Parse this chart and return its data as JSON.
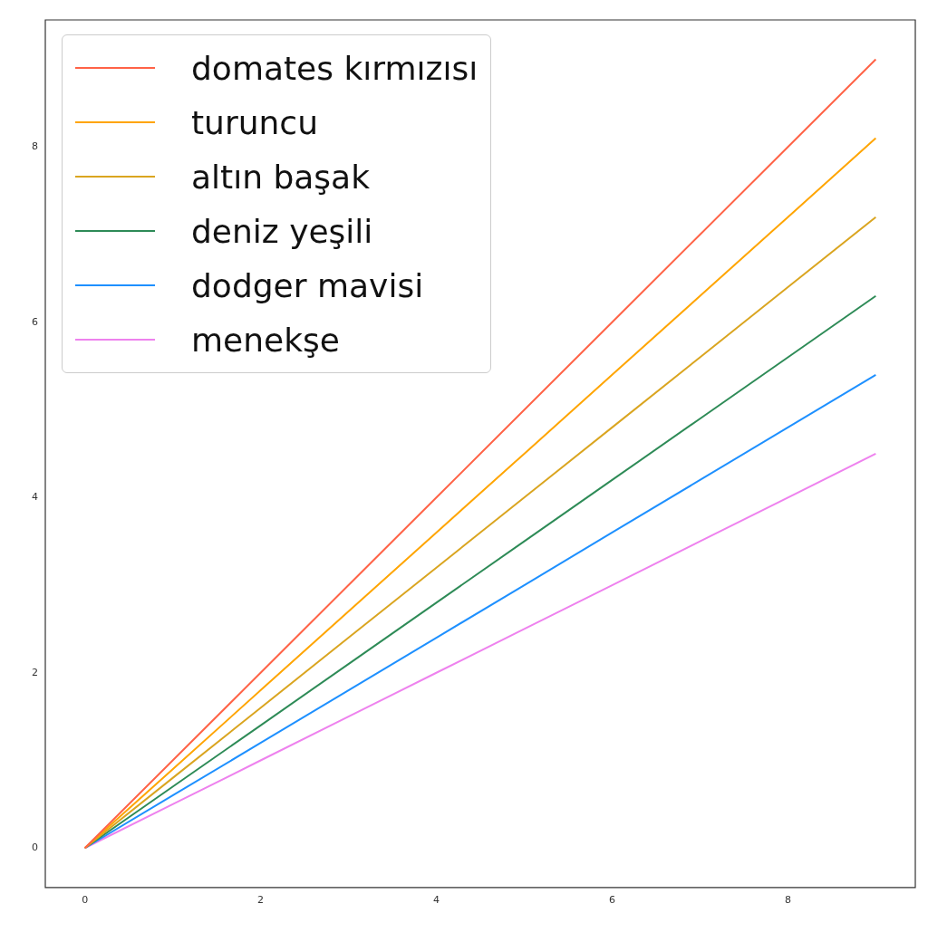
{
  "chart_data": {
    "type": "line",
    "x": [
      0,
      1,
      2,
      3,
      4,
      5,
      6,
      7,
      8,
      9
    ],
    "series": [
      {
        "name": "domates kırmızısı",
        "color": "#ff6347",
        "values": [
          0,
          1,
          2,
          3,
          4,
          5,
          6,
          7,
          8,
          9
        ]
      },
      {
        "name": "turuncu",
        "color": "#ffa500",
        "values": [
          0,
          0.9,
          1.8,
          2.7,
          3.6,
          4.5,
          5.4,
          6.3,
          7.2,
          8.1
        ]
      },
      {
        "name": "altın başak",
        "color": "#daa520",
        "values": [
          0,
          0.8,
          1.6,
          2.4,
          3.2,
          4,
          4.8,
          5.6,
          6.4,
          7.2
        ]
      },
      {
        "name": "deniz yeşili",
        "color": "#2e8b57",
        "values": [
          0,
          0.7,
          1.4,
          2.1,
          2.8,
          3.5,
          4.2,
          4.9,
          5.6,
          6.3
        ]
      },
      {
        "name": "dodger mavisi",
        "color": "#1e90ff",
        "values": [
          0,
          0.6,
          1.2,
          1.8,
          2.4,
          3,
          3.6,
          4.2,
          4.8,
          5.4
        ]
      },
      {
        "name": "menekşe",
        "color": "#ee82ee",
        "values": [
          0,
          0.5,
          1,
          1.5,
          2,
          2.5,
          3,
          3.5,
          4,
          4.5
        ]
      }
    ],
    "xlim": [
      -0.45,
      9.45
    ],
    "xticks": [
      0,
      2,
      4,
      6,
      8
    ],
    "ylim": [
      -0.45,
      9.45
    ],
    "yticks": [
      0,
      2,
      4,
      6,
      8
    ],
    "legend": "top left",
    "grid": false,
    "marker": "none",
    "line_style": "solid"
  }
}
